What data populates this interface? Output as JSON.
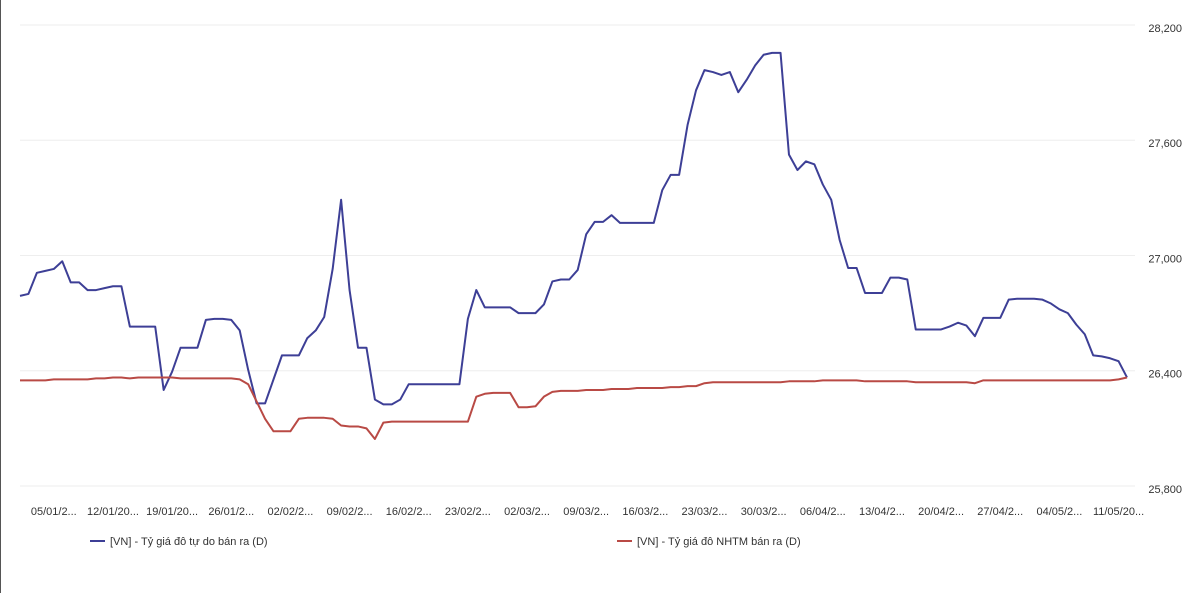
{
  "chart_data": {
    "type": "line",
    "categories": [
      null,
      null,
      null,
      null,
      "05/01/2...",
      null,
      null,
      null,
      null,
      null,
      null,
      "12/01/20...",
      null,
      null,
      null,
      null,
      null,
      null,
      "19/01/20...",
      null,
      null,
      null,
      null,
      null,
      null,
      "26/01/2...",
      null,
      null,
      null,
      null,
      null,
      null,
      "02/02/2...",
      null,
      null,
      null,
      null,
      null,
      null,
      "09/02/2...",
      null,
      null,
      null,
      null,
      null,
      null,
      "16/02/2...",
      null,
      null,
      null,
      null,
      null,
      null,
      "23/02/2...",
      null,
      null,
      null,
      null,
      null,
      null,
      "02/03/2...",
      null,
      null,
      null,
      null,
      null,
      null,
      "09/03/2...",
      null,
      null,
      null,
      null,
      null,
      null,
      "16/03/2...",
      null,
      null,
      null,
      null,
      null,
      null,
      "23/03/2...",
      null,
      null,
      null,
      null,
      null,
      null,
      "30/03/2...",
      null,
      null,
      null,
      null,
      null,
      null,
      "06/04/2...",
      null,
      null,
      null,
      null,
      null,
      null,
      "13/04/2...",
      null,
      null,
      null,
      null,
      null,
      null,
      "20/04/2...",
      null,
      null,
      null,
      null,
      null,
      null,
      "27/04/2...",
      null,
      null,
      null,
      null,
      null,
      null,
      "04/05/2...",
      null,
      null,
      null,
      null,
      null,
      null,
      "11/05/20...",
      null
    ],
    "series": [
      {
        "name": "[VN] - Tỷ giá đô tự do bán ra (D)",
        "color": "#3d3f96",
        "values": [
          26790,
          26800,
          26910,
          26920,
          26930,
          26970,
          26860,
          26860,
          26820,
          26820,
          26830,
          26840,
          26840,
          26630,
          26630,
          26630,
          26630,
          26300,
          26395,
          26520,
          26520,
          26520,
          26665,
          26670,
          26670,
          26665,
          26610,
          26405,
          26230,
          26230,
          26355,
          26480,
          26480,
          26480,
          26570,
          26610,
          26680,
          26930,
          27290,
          26820,
          26520,
          26520,
          26250,
          26225,
          26225,
          26250,
          26330,
          26330,
          26330,
          26330,
          26330,
          26330,
          26330,
          26670,
          26820,
          26730,
          26730,
          26730,
          26730,
          26700,
          26700,
          26700,
          26745,
          26865,
          26875,
          26875,
          26925,
          27110,
          27175,
          27175,
          27210,
          27170,
          27170,
          27170,
          27170,
          27170,
          27340,
          27420,
          27420,
          27680,
          27860,
          27965,
          27955,
          27940,
          27955,
          27850,
          27915,
          27990,
          28045,
          28055,
          28055,
          27525,
          27445,
          27490,
          27475,
          27370,
          27290,
          27080,
          26935,
          26935,
          26805,
          26805,
          26805,
          26885,
          26885,
          26875,
          26615,
          26615,
          26615,
          26615,
          26630,
          26650,
          26635,
          26580,
          26675,
          26675,
          26675,
          26770,
          26775,
          26775,
          26775,
          26770,
          26750,
          26720,
          26700,
          26640,
          26590,
          26480,
          26475,
          26465,
          26450,
          26365
        ]
      },
      {
        "name": "[VN] - Tỷ giá đô NHTM bán ra (D)",
        "color": "#b94a45",
        "values": [
          26350,
          26350,
          26350,
          26350,
          26355,
          26355,
          26355,
          26355,
          26355,
          26360,
          26360,
          26365,
          26365,
          26360,
          26365,
          26365,
          26365,
          26365,
          26365,
          26360,
          26360,
          26360,
          26360,
          26360,
          26360,
          26360,
          26355,
          26330,
          26240,
          26150,
          26085,
          26085,
          26085,
          26150,
          26155,
          26155,
          26155,
          26150,
          26115,
          26110,
          26110,
          26100,
          26045,
          26130,
          26135,
          26135,
          26135,
          26135,
          26135,
          26135,
          26135,
          26135,
          26135,
          26135,
          26265,
          26280,
          26285,
          26285,
          26285,
          26210,
          26210,
          26215,
          26265,
          26290,
          26295,
          26295,
          26295,
          26300,
          26300,
          26300,
          26305,
          26305,
          26305,
          26310,
          26310,
          26310,
          26310,
          26315,
          26315,
          26320,
          26320,
          26335,
          26340,
          26340,
          26340,
          26340,
          26340,
          26340,
          26340,
          26340,
          26340,
          26345,
          26345,
          26345,
          26345,
          26350,
          26350,
          26350,
          26350,
          26350,
          26345,
          26345,
          26345,
          26345,
          26345,
          26345,
          26340,
          26340,
          26340,
          26340,
          26340,
          26340,
          26340,
          26335,
          26350,
          26350,
          26350,
          26350,
          26350,
          26350,
          26350,
          26350,
          26350,
          26350,
          26350,
          26350,
          26350,
          26350,
          26350,
          26350,
          26355,
          26365
        ]
      }
    ],
    "ylim": [
      25800,
      28200
    ],
    "yticks": [
      {
        "value": 25800,
        "label": "25,800"
      },
      {
        "value": 26400,
        "label": "26,400"
      },
      {
        "value": 27000,
        "label": "27,000"
      },
      {
        "value": 27600,
        "label": "27,600"
      },
      {
        "value": 28200,
        "label": "28,200"
      }
    ],
    "grid": true,
    "legend": "bottom"
  }
}
